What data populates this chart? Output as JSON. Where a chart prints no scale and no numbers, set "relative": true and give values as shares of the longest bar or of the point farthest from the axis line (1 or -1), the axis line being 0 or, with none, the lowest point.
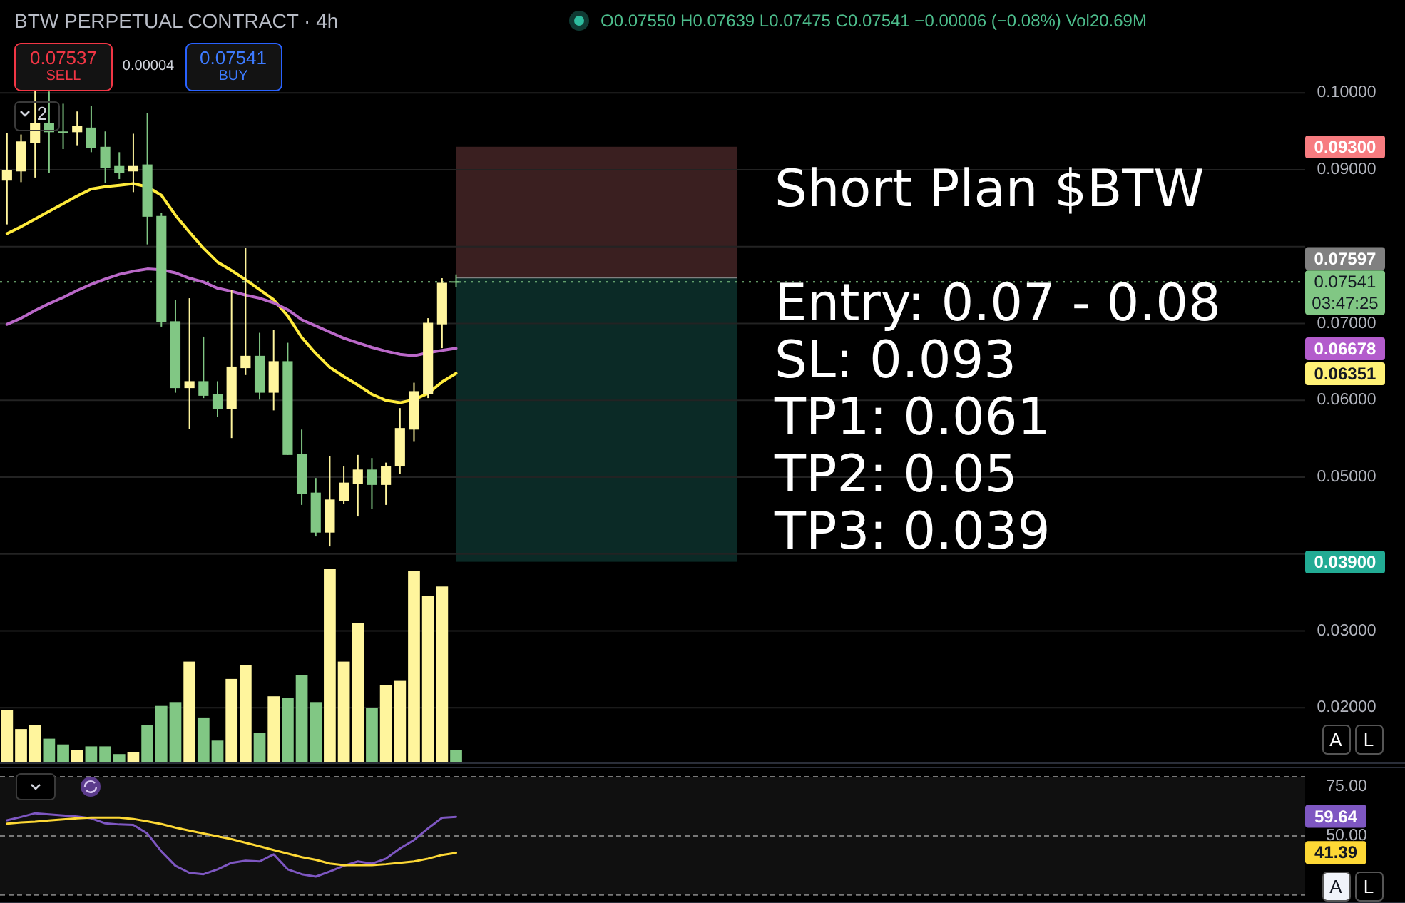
{
  "chart_data": [
    {
      "type": "candlestick",
      "title": "BTW PERPETUAL CONTRACT · 4h",
      "categories": [
        null,
        null,
        null,
        null,
        null,
        null,
        null,
        null,
        null,
        null,
        null,
        null,
        null,
        null,
        null,
        null,
        null,
        null,
        null,
        null,
        null,
        null,
        null,
        null,
        null,
        null,
        null,
        null,
        null,
        null,
        null,
        null,
        null,
        null,
        null,
        null,
        null,
        null,
        null,
        null,
        null,
        null,
        null,
        null,
        null,
        null,
        null,
        null,
        null,
        null,
        null,
        null,
        null,
        null,
        null,
        null,
        null,
        null,
        null,
        null,
        null,
        null,
        null,
        null,
        null,
        null,
        null,
        null,
        null,
        null,
        null,
        null,
        null,
        null,
        null,
        null,
        null,
        null,
        null,
        null,
        null,
        null,
        null,
        null,
        null,
        null,
        null,
        null,
        null,
        null,
        null,
        null,
        null
      ],
      "ohlc": [
        [
          0.0886,
          0.0948,
          0.0829,
          0.09
        ],
        [
          0.0898,
          0.0946,
          0.0884,
          0.0937
        ],
        [
          0.0935,
          0.1004,
          0.089,
          0.0961
        ],
        [
          0.0961,
          0.1002,
          0.0896,
          0.0949
        ],
        [
          0.095,
          0.0986,
          0.0927,
          0.0949
        ],
        [
          0.0949,
          0.0976,
          0.0932,
          0.0957
        ],
        [
          0.0955,
          0.0983,
          0.0923,
          0.0928
        ],
        [
          0.093,
          0.095,
          0.0883,
          0.0902
        ],
        [
          0.0905,
          0.0923,
          0.0888,
          0.0896
        ],
        [
          0.0898,
          0.0947,
          0.0871,
          0.0905
        ],
        [
          0.0907,
          0.0974,
          0.0803,
          0.0839
        ],
        [
          0.084,
          0.0844,
          0.0696,
          0.0702
        ],
        [
          0.0703,
          0.0731,
          0.061,
          0.0616
        ],
        [
          0.0616,
          0.0733,
          0.0563,
          0.0625
        ],
        [
          0.0625,
          0.0683,
          0.0603,
          0.0606
        ],
        [
          0.0608,
          0.0625,
          0.0578,
          0.0589
        ],
        [
          0.0589,
          0.0744,
          0.0551,
          0.0644
        ],
        [
          0.0642,
          0.0798,
          0.0633,
          0.0658
        ],
        [
          0.0658,
          0.0688,
          0.0601,
          0.061
        ],
        [
          0.061,
          0.0692,
          0.0587,
          0.0651
        ],
        [
          0.0651,
          0.0675,
          0.0529,
          0.0529
        ],
        [
          0.053,
          0.0562,
          0.0464,
          0.0478
        ],
        [
          0.048,
          0.0499,
          0.0423,
          0.0428
        ],
        [
          0.0428,
          0.0527,
          0.041,
          0.0471
        ],
        [
          0.0469,
          0.0514,
          0.0465,
          0.0493
        ],
        [
          0.0491,
          0.0529,
          0.0449,
          0.051
        ],
        [
          0.051,
          0.0525,
          0.0459,
          0.049
        ],
        [
          0.049,
          0.0519,
          0.0464,
          0.0514
        ],
        [
          0.0514,
          0.059,
          0.0504,
          0.0564
        ],
        [
          0.0562,
          0.0623,
          0.0547,
          0.0612
        ],
        [
          0.0608,
          0.0707,
          0.0603,
          0.0701
        ],
        [
          0.0699,
          0.0759,
          0.0668,
          0.0753
        ],
        [
          0.0755,
          0.07639,
          0.07475,
          0.07541
        ],
        null,
        null,
        null,
        null,
        null,
        null,
        null,
        null,
        null,
        null,
        null,
        null,
        null,
        null,
        null,
        null,
        null,
        null,
        null,
        null,
        null,
        null,
        null,
        null,
        null,
        null,
        null,
        null,
        null,
        null,
        null,
        null,
        null,
        null,
        null,
        null,
        null,
        null,
        null,
        null,
        null,
        null,
        null,
        null,
        null,
        null,
        null,
        null,
        null,
        null,
        null,
        null,
        null,
        null,
        null,
        null,
        null,
        null,
        null,
        null
      ],
      "colors": [
        "#fff59d",
        "#fff59d",
        "#fff59d",
        "#81c784",
        "#81c784",
        "#fff59d",
        "#81c784",
        "#81c784",
        "#81c784",
        "#fff59d",
        "#81c784",
        "#81c784",
        "#81c784",
        "#fff59d",
        "#81c784",
        "#81c784",
        "#fff59d",
        "#fff59d",
        "#81c784",
        "#fff59d",
        "#81c784",
        "#81c784",
        "#81c784",
        "#fff59d",
        "#fff59d",
        "#fff59d",
        "#81c784",
        "#fff59d",
        "#fff59d",
        "#fff59d",
        "#fff59d",
        "#fff59d",
        "#81c784",
        null,
        null,
        null,
        null,
        null,
        null,
        null,
        null,
        null,
        null,
        null,
        null,
        null,
        null,
        null,
        null,
        null,
        null,
        null,
        null,
        null,
        null,
        null,
        null,
        null,
        null,
        null,
        null,
        null,
        null,
        null,
        null,
        null,
        null,
        null,
        null,
        null,
        null,
        null,
        null,
        null,
        null,
        null,
        null,
        null,
        null,
        null,
        null,
        null,
        null,
        null,
        null,
        null,
        null,
        null,
        null,
        null,
        null,
        null,
        null
      ],
      "series": [
        {
          "type": "line",
          "color": "#ffeb3b",
          "values": [
            0.0817,
            0.0826,
            0.0836,
            0.0846,
            0.0856,
            0.0866,
            0.0875,
            0.0878,
            0.088,
            0.0882,
            0.0878,
            0.0867,
            0.0841,
            0.0819,
            0.0798,
            0.078,
            0.0769,
            0.0757,
            0.0744,
            0.0731,
            0.071,
            0.0682,
            0.0661,
            0.0643,
            0.0631,
            0.062,
            0.0608,
            0.06,
            0.0597,
            0.0601,
            0.0609,
            0.0624,
            0.06351,
            null,
            null,
            null,
            null,
            null,
            null,
            null,
            null,
            null,
            null,
            null,
            null,
            null,
            null,
            null,
            null,
            null,
            null,
            null,
            null,
            null,
            null,
            null,
            null,
            null,
            null,
            null,
            null,
            null,
            null,
            null,
            null,
            null,
            null,
            null,
            null,
            null,
            null,
            null,
            null,
            null,
            null,
            null,
            null,
            null,
            null,
            null,
            null,
            null,
            null,
            null,
            null,
            null,
            null,
            null,
            null,
            null,
            null,
            null,
            null
          ]
        },
        {
          "type": "line",
          "color": "#ba68c8",
          "values": [
            0.0699,
            0.0707,
            0.0717,
            0.0726,
            0.0734,
            0.0743,
            0.0751,
            0.0758,
            0.0764,
            0.0768,
            0.0771,
            0.077,
            0.0766,
            0.0759,
            0.0754,
            0.0746,
            0.0742,
            0.0737,
            0.0733,
            0.0727,
            0.0718,
            0.0705,
            0.0697,
            0.0689,
            0.0681,
            0.0675,
            0.0669,
            0.0664,
            0.066,
            0.0658,
            0.0662,
            0.0665,
            0.06678,
            null,
            null,
            null,
            null,
            null,
            null,
            null,
            null,
            null,
            null,
            null,
            null,
            null,
            null,
            null,
            null,
            null,
            null,
            null,
            null,
            null,
            null,
            null,
            null,
            null,
            null,
            null,
            null,
            null,
            null,
            null,
            null,
            null,
            null,
            null,
            null,
            null,
            null,
            null,
            null,
            null,
            null,
            null,
            null,
            null,
            null,
            null,
            null,
            null,
            null,
            null,
            null,
            null,
            null,
            null,
            null,
            null,
            null,
            null,
            null
          ]
        }
      ],
      "ylim": [
        0.0127,
        0.1121
      ],
      "yticks": [
        {
          "value": 0.02,
          "label": "0.02000"
        },
        {
          "value": 0.03,
          "label": "0.03000"
        },
        {
          "value": 0.04,
          "label": null
        },
        {
          "value": 0.05,
          "label": "0.05000"
        },
        {
          "value": 0.06,
          "label": "0.06000"
        },
        {
          "value": 0.07,
          "label": "0.07000"
        },
        {
          "value": 0.08,
          "label": null
        },
        {
          "value": 0.09,
          "label": "0.09000"
        },
        {
          "value": 0.1,
          "label": "0.10000"
        }
      ],
      "grid": "y",
      "bands": [
        {
          "axis": "y",
          "from": 0.07597,
          "to": 0.093,
          "color": "#3a1f20"
        },
        {
          "axis": "y",
          "from": 0.039,
          "to": 0.07597,
          "color": "#0b2a26"
        }
      ],
      "ref_lines": [
        {
          "axis": "y",
          "value": 0.07597,
          "color": "#808080"
        },
        {
          "axis": "y",
          "value": 0.07541,
          "label": "0.07541\n03:47:25",
          "color": "#81c784",
          "line_style": "dotted"
        }
      ],
      "annotations": [
        "O0.07550 H0.07639 L0.07475 C0.07541 −0.00006 (−0.08%) Vol20.69M",
        "0.07537",
        "SELL",
        "0.00004",
        "0.07541",
        "BUY",
        "2",
        "Short Plan $BTW",
        "Entry: 0.07 - 0.08",
        "SL: 0.093",
        "TP1: 0.061",
        "TP2: 0.05",
        "TP3: 0.039",
        "A",
        "L",
        "0.09300",
        "0.07597",
        "0.06678",
        "0.06351",
        "0.03900"
      ]
    },
    {
      "type": "bar",
      "relative": true,
      "categories": [
        null,
        null,
        null,
        null,
        null,
        null,
        null,
        null,
        null,
        null,
        null,
        null,
        null,
        null,
        null,
        null,
        null,
        null,
        null,
        null,
        null,
        null,
        null,
        null,
        null,
        null,
        null,
        null,
        null,
        null,
        null,
        null,
        null,
        null,
        null,
        null,
        null,
        null,
        null,
        null,
        null,
        null,
        null,
        null,
        null,
        null,
        null,
        null,
        null,
        null,
        null,
        null,
        null,
        null,
        null,
        null,
        null,
        null,
        null,
        null,
        null,
        null,
        null,
        null,
        null,
        null,
        null,
        null,
        null,
        null,
        null,
        null,
        null,
        null,
        null,
        null,
        null,
        null,
        null,
        null,
        null,
        null,
        null,
        null,
        null,
        null,
        null,
        null,
        null,
        null,
        null,
        null,
        null
      ],
      "values": [
        0.27,
        0.17,
        0.19,
        0.12,
        0.09,
        0.06,
        0.08,
        0.08,
        0.04,
        0.05,
        0.19,
        0.29,
        0.31,
        0.52,
        0.23,
        0.11,
        0.43,
        0.5,
        0.15,
        0.34,
        0.33,
        0.45,
        0.31,
        1,
        0.52,
        0.72,
        0.28,
        0.4,
        0.42,
        0.99,
        0.86,
        0.91,
        0.06,
        null,
        null,
        null,
        null,
        null,
        null,
        null,
        null,
        null,
        null,
        null,
        null,
        null,
        null,
        null,
        null,
        null,
        null,
        null,
        null,
        null,
        null,
        null,
        null,
        null,
        null,
        null,
        null,
        null,
        null,
        null,
        null,
        null,
        null,
        null,
        null,
        null,
        null,
        null,
        null,
        null,
        null,
        null,
        null,
        null,
        null,
        null,
        null,
        null,
        null,
        null,
        null,
        null,
        null,
        null,
        null,
        null,
        null,
        null,
        null
      ],
      "colors": [
        "#fff59d",
        "#fff59d",
        "#fff59d",
        "#81c784",
        "#81c784",
        "#fff59d",
        "#81c784",
        "#81c784",
        "#81c784",
        "#fff59d",
        "#81c784",
        "#81c784",
        "#81c784",
        "#fff59d",
        "#81c784",
        "#81c784",
        "#fff59d",
        "#fff59d",
        "#81c784",
        "#fff59d",
        "#81c784",
        "#81c784",
        "#81c784",
        "#fff59d",
        "#fff59d",
        "#fff59d",
        "#81c784",
        "#fff59d",
        "#fff59d",
        "#fff59d",
        "#fff59d",
        "#fff59d",
        "#81c784",
        null,
        null,
        null,
        null,
        null,
        null,
        null,
        null,
        null,
        null,
        null,
        null,
        null,
        null,
        null,
        null,
        null,
        null,
        null,
        null,
        null,
        null,
        null,
        null,
        null,
        null,
        null,
        null,
        null,
        null,
        null,
        null,
        null,
        null,
        null,
        null,
        null,
        null,
        null,
        null,
        null,
        null,
        null,
        null,
        null,
        null,
        null,
        null,
        null,
        null,
        null,
        null,
        null,
        null,
        null,
        null,
        null,
        null,
        null,
        null
      ]
    },
    {
      "type": "line",
      "categories": [
        null,
        null,
        null,
        null,
        null,
        null,
        null,
        null,
        null,
        null,
        null,
        null,
        null,
        null,
        null,
        null,
        null,
        null,
        null,
        null,
        null,
        null,
        null,
        null,
        null,
        null,
        null,
        null,
        null,
        null,
        null,
        null,
        null,
        null,
        null,
        null,
        null,
        null,
        null,
        null,
        null,
        null,
        null,
        null,
        null,
        null,
        null,
        null,
        null,
        null,
        null,
        null,
        null,
        null,
        null,
        null,
        null,
        null,
        null,
        null,
        null,
        null,
        null,
        null,
        null,
        null,
        null,
        null,
        null,
        null,
        null,
        null,
        null,
        null,
        null,
        null,
        null,
        null,
        null,
        null,
        null,
        null,
        null,
        null,
        null,
        null,
        null,
        null,
        null,
        null,
        null,
        null,
        null
      ],
      "series": [
        {
          "color": "#7e57c2",
          "values": [
            57.9,
            59.6,
            61.5,
            60.9,
            60.4,
            59.8,
            58.9,
            56.4,
            55.8,
            55.6,
            51.2,
            42.1,
            34.8,
            31.2,
            30.5,
            33.0,
            36.3,
            37.4,
            37.0,
            40.6,
            33.0,
            30.5,
            29.3,
            31.9,
            34.8,
            37.0,
            35.9,
            38.4,
            43.6,
            47.9,
            53.8,
            59.2,
            59.64,
            null,
            null,
            null,
            null,
            null,
            null,
            null,
            null,
            null,
            null,
            null,
            null,
            null,
            null,
            null,
            null,
            null,
            null,
            null,
            null,
            null,
            null,
            null,
            null,
            null,
            null,
            null,
            null,
            null,
            null,
            null,
            null,
            null,
            null,
            null,
            null,
            null,
            null,
            null,
            null,
            null,
            null,
            null,
            null,
            null,
            null,
            null,
            null,
            null,
            null,
            null,
            null,
            null,
            null,
            null,
            null,
            null,
            null,
            null,
            null
          ]
        },
        {
          "color": "#fdd835",
          "values": [
            56.2,
            56.8,
            57.2,
            57.8,
            58.4,
            58.9,
            59.3,
            59.3,
            59.3,
            58.6,
            57.4,
            56.0,
            54.2,
            52.7,
            51.2,
            49.8,
            48.3,
            46.5,
            44.7,
            42.8,
            41.0,
            39.2,
            37.8,
            35.9,
            35.1,
            35.1,
            35.1,
            35.6,
            36.3,
            37.0,
            38.4,
            40.3,
            41.39,
            null,
            null,
            null,
            null,
            null,
            null,
            null,
            null,
            null,
            null,
            null,
            null,
            null,
            null,
            null,
            null,
            null,
            null,
            null,
            null,
            null,
            null,
            null,
            null,
            null,
            null,
            null,
            null,
            null,
            null,
            null,
            null,
            null,
            null,
            null,
            null,
            null,
            null,
            null,
            null,
            null,
            null,
            null,
            null,
            null,
            null,
            null,
            null,
            null,
            null,
            null,
            null,
            null,
            null,
            null,
            null,
            null,
            null,
            null,
            null
          ]
        }
      ],
      "ylim": [
        15.9,
        85.1
      ],
      "yticks": [
        {
          "value": 75,
          "label": "75.00"
        },
        {
          "value": 50,
          "label": "50.00"
        }
      ],
      "bands": [
        {
          "axis": "y",
          "from": 20,
          "to": 80,
          "color": "#101010"
        }
      ],
      "ref_lines": [
        {
          "axis": "y",
          "value": 80,
          "color": "#787878",
          "line_style": "dashed"
        },
        {
          "axis": "y",
          "value": 50,
          "color": "#787878",
          "line_style": "dashed"
        },
        {
          "axis": "y",
          "value": 20,
          "color": "#787878",
          "line_style": "dashed"
        }
      ],
      "annotations": [
        "59.64",
        "41.39",
        "A",
        "L"
      ]
    }
  ]
}
